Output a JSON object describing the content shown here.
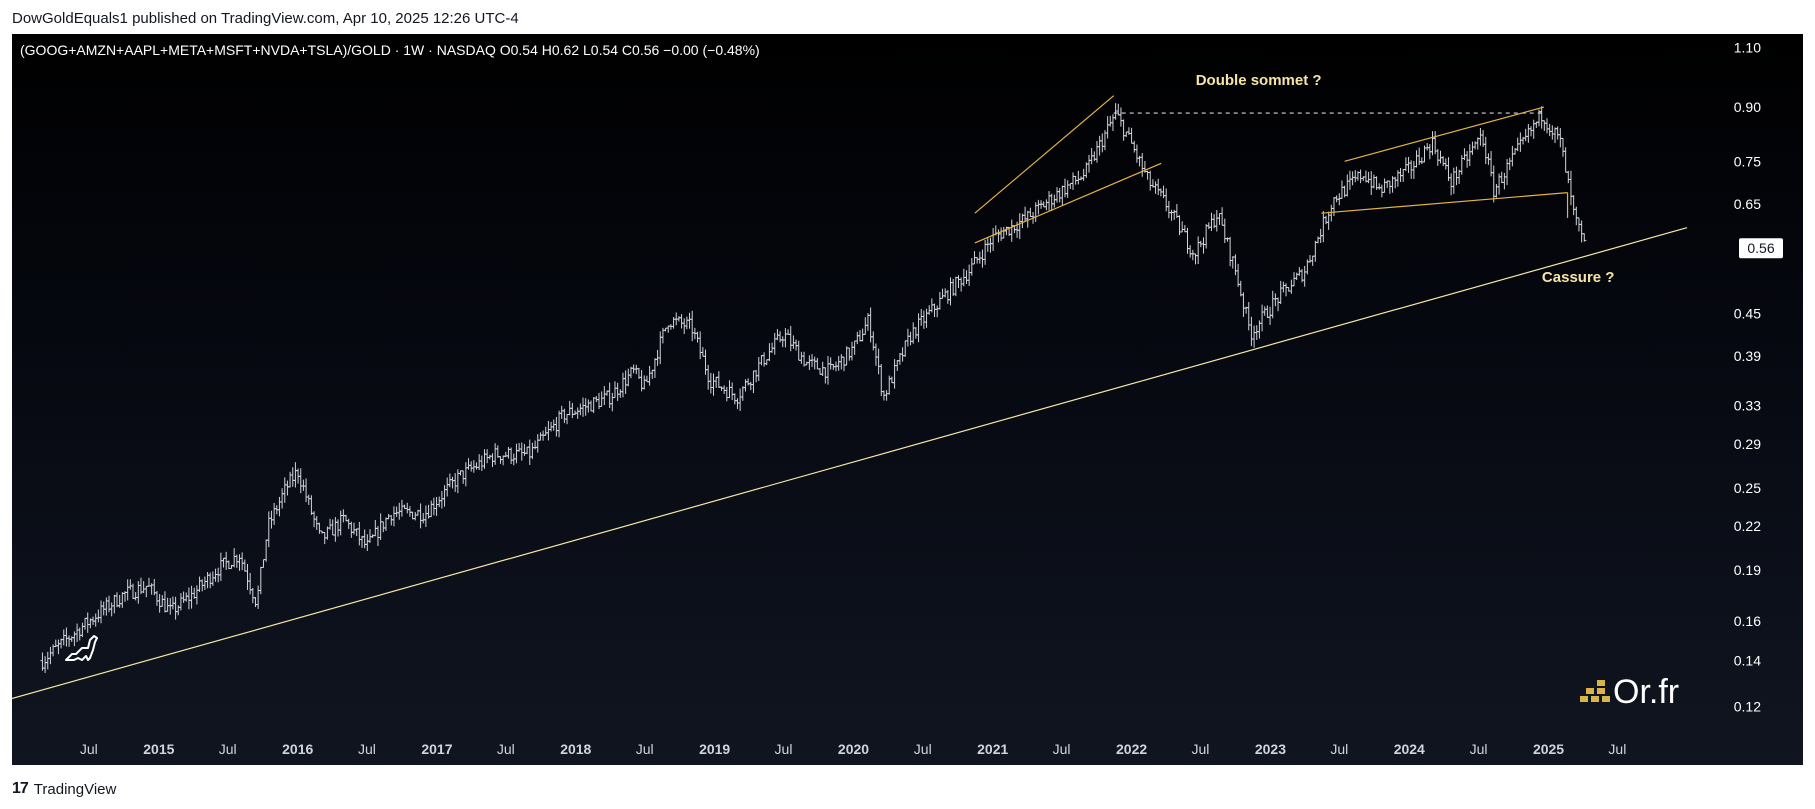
{
  "publisher_line": "DowGoldEquals1 published on TradingView.com, Apr 10, 2025 12:26 UTC-4",
  "footer": {
    "logo_mark": "17",
    "brand": "TradingView"
  },
  "watermark": {
    "text": "Or.fr"
  },
  "colors": {
    "background": "#000000",
    "bars": "#d1d4dc",
    "trendline": "#f5e6a8",
    "pattern_lines": "#e3b341",
    "annotation_text": "#f5e6a8",
    "price_badge_bg": "#ffffff"
  },
  "chart_data": {
    "type": "ohlc",
    "symbol_line": "(GOOG+AMZN+AAPL+META+MSFT+NVDA+TSLA)/GOLD · 1W · NASDAQ  O0.54  H0.62  L0.54  C0.56  −0.00 (−0.48%)",
    "symbol": "(GOOG+AMZN+AAPL+META+MSFT+NVDA+TSLA)/GOLD",
    "interval": "1W",
    "exchange": "NASDAQ",
    "ohlc_last": {
      "open": 0.54,
      "high": 0.62,
      "low": 0.54,
      "close": 0.56,
      "change": "−0.00",
      "change_pct": "−0.48%"
    },
    "last_price_label": "0.56",
    "y_scale": "log",
    "y_range": [
      0.112,
      1.12
    ],
    "y_ticks": [
      "1.10",
      "0.90",
      "0.75",
      "0.65",
      "0.56",
      "0.45",
      "0.39",
      "0.33",
      "0.29",
      "0.25",
      "0.22",
      "0.19",
      "0.16",
      "0.14",
      "0.12"
    ],
    "x_range": [
      "2014-01-01",
      "2025-12-31"
    ],
    "x_ticks": [
      {
        "label": "Jul",
        "date": "2014-07-01",
        "bold": false
      },
      {
        "label": "2015",
        "date": "2015-01-01",
        "bold": true
      },
      {
        "label": "Jul",
        "date": "2015-07-01",
        "bold": false
      },
      {
        "label": "2016",
        "date": "2016-01-01",
        "bold": true
      },
      {
        "label": "Jul",
        "date": "2016-07-01",
        "bold": false
      },
      {
        "label": "2017",
        "date": "2017-01-01",
        "bold": true
      },
      {
        "label": "Jul",
        "date": "2017-07-01",
        "bold": false
      },
      {
        "label": "2018",
        "date": "2018-01-01",
        "bold": true
      },
      {
        "label": "Jul",
        "date": "2018-07-01",
        "bold": false
      },
      {
        "label": "2019",
        "date": "2019-01-01",
        "bold": true
      },
      {
        "label": "Jul",
        "date": "2019-07-01",
        "bold": false
      },
      {
        "label": "2020",
        "date": "2020-01-01",
        "bold": true
      },
      {
        "label": "Jul",
        "date": "2020-07-01",
        "bold": false
      },
      {
        "label": "2021",
        "date": "2021-01-01",
        "bold": true
      },
      {
        "label": "Jul",
        "date": "2021-07-01",
        "bold": false
      },
      {
        "label": "2022",
        "date": "2022-01-01",
        "bold": true
      },
      {
        "label": "Jul",
        "date": "2022-07-01",
        "bold": false
      },
      {
        "label": "2023",
        "date": "2023-01-01",
        "bold": true
      },
      {
        "label": "Jul",
        "date": "2023-07-01",
        "bold": false
      },
      {
        "label": "2024",
        "date": "2024-01-01",
        "bold": true
      },
      {
        "label": "Jul",
        "date": "2024-07-01",
        "bold": false
      },
      {
        "label": "2025",
        "date": "2025-01-01",
        "bold": true
      },
      {
        "label": "Jul",
        "date": "2025-07-01",
        "bold": false
      }
    ],
    "price_path": [
      [
        "2014-03-01",
        0.14
      ],
      [
        "2014-05-01",
        0.15
      ],
      [
        "2014-08-01",
        0.165
      ],
      [
        "2014-10-01",
        0.175
      ],
      [
        "2014-12-01",
        0.18
      ],
      [
        "2015-02-01",
        0.165
      ],
      [
        "2015-04-01",
        0.175
      ],
      [
        "2015-06-01",
        0.19
      ],
      [
        "2015-08-01",
        0.2
      ],
      [
        "2015-09-15",
        0.17
      ],
      [
        "2015-10-15",
        0.22
      ],
      [
        "2015-12-01",
        0.25
      ],
      [
        "2016-01-01",
        0.265
      ],
      [
        "2016-03-01",
        0.21
      ],
      [
        "2016-05-01",
        0.225
      ],
      [
        "2016-07-01",
        0.205
      ],
      [
        "2016-09-01",
        0.23
      ],
      [
        "2016-12-01",
        0.23
      ],
      [
        "2017-03-01",
        0.26
      ],
      [
        "2017-06-01",
        0.28
      ],
      [
        "2017-09-01",
        0.28
      ],
      [
        "2017-12-01",
        0.32
      ],
      [
        "2018-02-01",
        0.33
      ],
      [
        "2018-04-01",
        0.34
      ],
      [
        "2018-06-01",
        0.37
      ],
      [
        "2018-07-01",
        0.35
      ],
      [
        "2018-09-01",
        0.44
      ],
      [
        "2018-11-01",
        0.43
      ],
      [
        "2018-12-20",
        0.36
      ],
      [
        "2019-03-01",
        0.34
      ],
      [
        "2019-05-01",
        0.38
      ],
      [
        "2019-07-01",
        0.42
      ],
      [
        "2019-09-01",
        0.38
      ],
      [
        "2019-11-01",
        0.37
      ],
      [
        "2020-01-01",
        0.4
      ],
      [
        "2020-02-10",
        0.44
      ],
      [
        "2020-03-20",
        0.34
      ],
      [
        "2020-06-01",
        0.42
      ],
      [
        "2020-09-01",
        0.48
      ],
      [
        "2020-11-01",
        0.52
      ],
      [
        "2021-01-01",
        0.58
      ],
      [
        "2021-04-01",
        0.62
      ],
      [
        "2021-06-01",
        0.66
      ],
      [
        "2021-09-01",
        0.72
      ],
      [
        "2021-11-20",
        0.88
      ],
      [
        "2021-12-20",
        0.82
      ],
      [
        "2022-02-15",
        0.7
      ],
      [
        "2022-04-01",
        0.65
      ],
      [
        "2022-06-15",
        0.55
      ],
      [
        "2022-08-15",
        0.63
      ],
      [
        "2022-10-01",
        0.52
      ],
      [
        "2022-11-10",
        0.42
      ],
      [
        "2023-01-15",
        0.47
      ],
      [
        "2023-04-01",
        0.52
      ],
      [
        "2023-06-15",
        0.66
      ],
      [
        "2023-09-01",
        0.72
      ],
      [
        "2023-10-15",
        0.68
      ],
      [
        "2024-01-01",
        0.73
      ],
      [
        "2024-03-01",
        0.8
      ],
      [
        "2024-04-20",
        0.7
      ],
      [
        "2024-07-10",
        0.82
      ],
      [
        "2024-08-10",
        0.68
      ],
      [
        "2024-10-01",
        0.76
      ],
      [
        "2024-12-15",
        0.88
      ],
      [
        "2025-02-01",
        0.8
      ],
      [
        "2025-03-10",
        0.62
      ],
      [
        "2025-04-08",
        0.56
      ]
    ],
    "drawings": {
      "long_trendline": {
        "start": [
          "2013-06-01",
          0.115
        ],
        "end": [
          "2025-12-31",
          0.6
        ]
      },
      "broadening_wedge_upper": {
        "start": [
          "2020-11-15",
          0.63
        ],
        "end": [
          "2021-11-15",
          0.935
        ]
      },
      "broadening_wedge_lower": {
        "start": [
          "2020-11-15",
          0.57
        ],
        "end": [
          "2022-03-20",
          0.745
        ]
      },
      "double_top_dashed": {
        "start": [
          "2021-11-15",
          0.882
        ],
        "end": [
          "2024-12-20",
          0.882
        ]
      },
      "range_upper": {
        "start": [
          "2023-07-15",
          0.75
        ],
        "end": [
          "2024-12-20",
          0.9
        ]
      },
      "range_lower": {
        "start": [
          "2023-05-15",
          0.63
        ],
        "end": [
          "2025-02-20",
          0.675
        ]
      },
      "range_right_edge": {
        "start": [
          "2025-02-20",
          0.675
        ],
        "end": [
          "2025-02-20",
          0.62
        ]
      }
    },
    "annotations": [
      {
        "text": "Double sommet ?",
        "x": "2022-12-01",
        "y": 0.97
      },
      {
        "text": "Cassure ?",
        "x": "2025-03-20",
        "y": 0.5
      }
    ]
  }
}
